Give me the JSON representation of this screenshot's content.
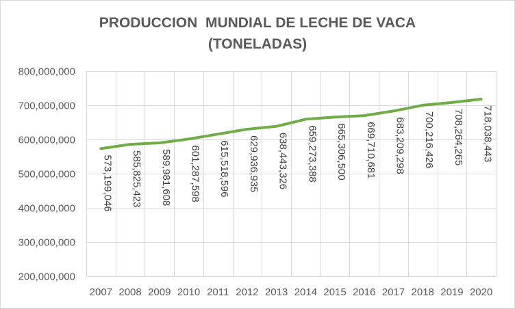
{
  "chart_data": {
    "type": "line",
    "title_line1": "PRODUCCION  MUNDIAL DE LECHE DE VACA",
    "title_line2": "(TONELADAS)",
    "xlabel": "",
    "ylabel": "",
    "categories": [
      "2007",
      "2008",
      "2009",
      "2010",
      "2011",
      "2012",
      "2013",
      "2014",
      "2015",
      "2016",
      "2017",
      "2018",
      "2019",
      "2020"
    ],
    "series": [
      {
        "values": [
          573199046,
          585825423,
          589981608,
          601287598,
          615518596,
          629936935,
          638443326,
          659273388,
          665306500,
          669710681,
          683209298,
          700216426,
          708264265,
          718038443
        ],
        "labels": [
          "573,199,046",
          "585,825,423",
          "589,981,608",
          "601,287,598",
          "615,518,596",
          "629,936,935",
          "638,443,326",
          "659,273,388",
          "665,306,500",
          "669,710,681",
          "683,209,298",
          "700,216,426",
          "708,264,265",
          "718,038,443"
        ],
        "color": "#70ad47"
      }
    ],
    "ylim": [
      200000000,
      800000000
    ],
    "yticks": [
      200000000,
      300000000,
      400000000,
      500000000,
      600000000,
      700000000,
      800000000
    ],
    "ytick_labels": [
      "200,000,000",
      "300,000,000",
      "400,000,000",
      "500,000,000",
      "600,000,000",
      "700,000,000",
      "800,000,000"
    ],
    "grid": true,
    "gridline_color": "#d9d9d9",
    "text_color": "#595959",
    "legend": "none"
  }
}
